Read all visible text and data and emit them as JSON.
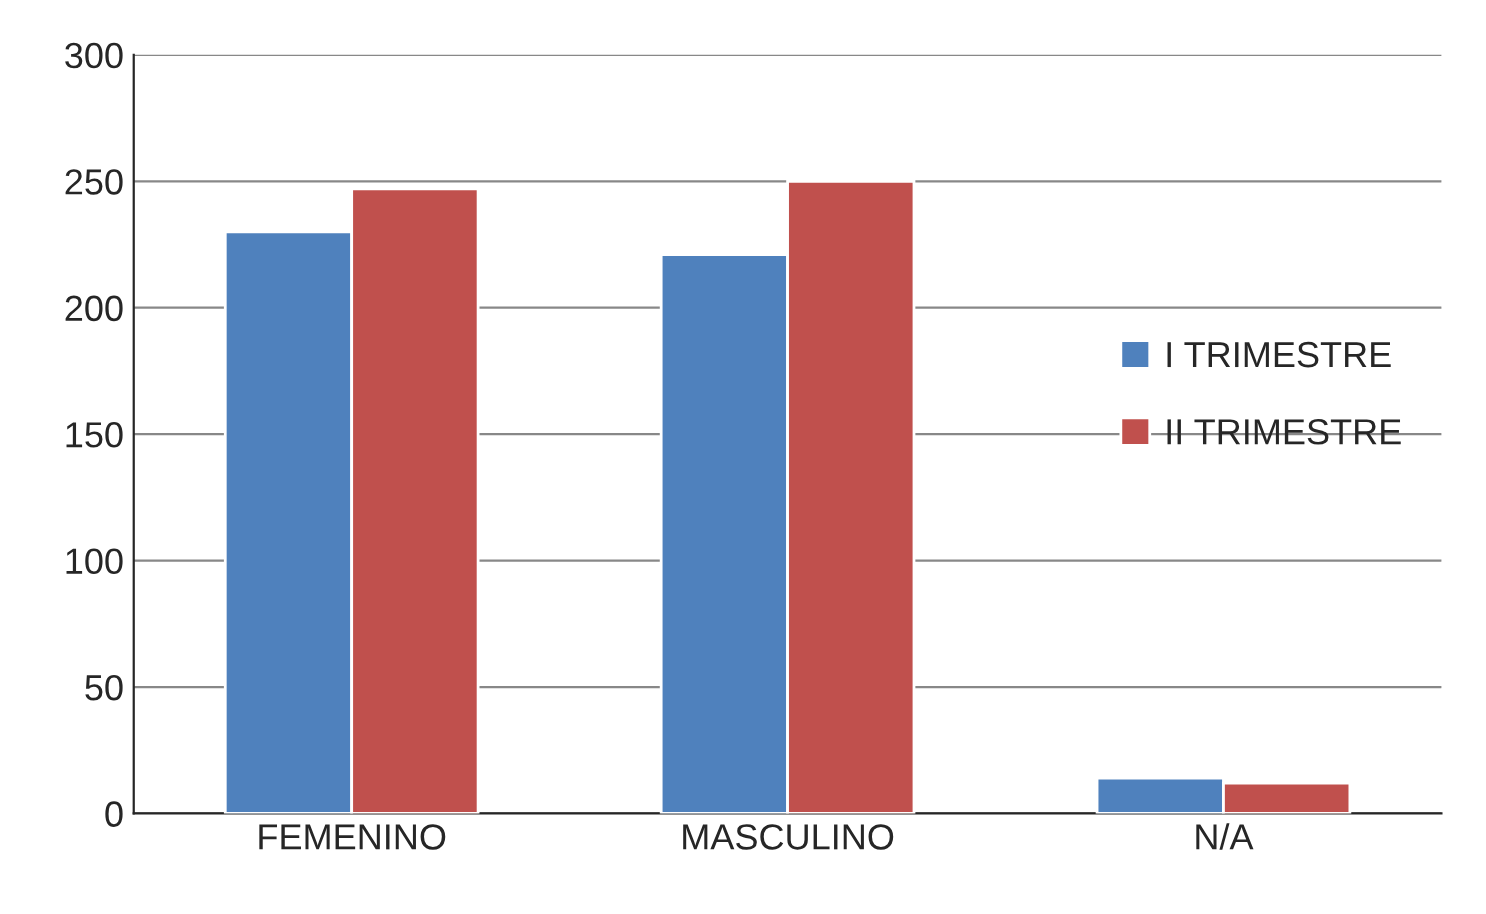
{
  "chart_data": {
    "type": "bar",
    "categories": [
      "FEMENINO",
      "MASCULINO",
      "N/A"
    ],
    "series": [
      {
        "name": "I TRIMESTRE",
        "color": "#4f81bd",
        "values": [
          230,
          221,
          14
        ]
      },
      {
        "name": "II TRIMESTRE",
        "color": "#c0504d",
        "values": [
          247,
          250,
          12
        ]
      }
    ],
    "ylim": [
      0,
      300
    ],
    "yticks": [
      0,
      50,
      100,
      150,
      200,
      250,
      300
    ],
    "grid": "y",
    "legend": "right"
  }
}
